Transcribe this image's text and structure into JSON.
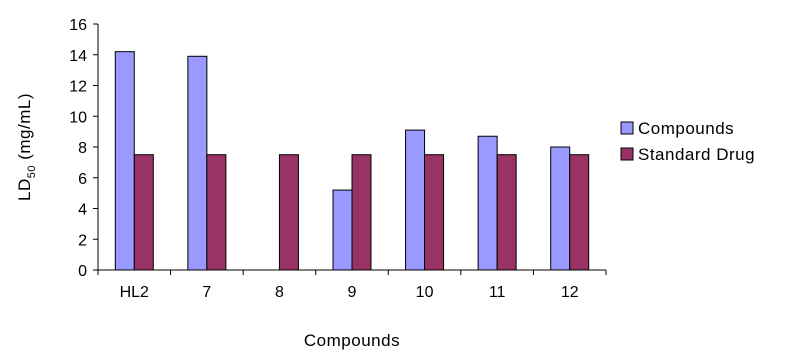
{
  "chart_data": {
    "type": "bar",
    "categories": [
      "HL2",
      "7",
      "8",
      "9",
      "10",
      "11",
      "12"
    ],
    "series": [
      {
        "name": "Compounds",
        "color": "#9999ff",
        "values": [
          14.2,
          13.9,
          0,
          5.2,
          9.1,
          8.7,
          8.0
        ]
      },
      {
        "name": "Standard Drug",
        "color": "#993366",
        "values": [
          7.5,
          7.5,
          7.5,
          7.5,
          7.5,
          7.5,
          7.5
        ]
      }
    ],
    "title": "",
    "xlabel": "Compounds",
    "ylabel": {
      "main": "LD",
      "subscript": "50",
      "suffix": " (mg/mL)"
    },
    "ylim": [
      0,
      16
    ],
    "yticks": [
      0,
      2,
      4,
      6,
      8,
      10,
      12,
      14,
      16
    ],
    "grid": false,
    "legend_position": "right"
  }
}
